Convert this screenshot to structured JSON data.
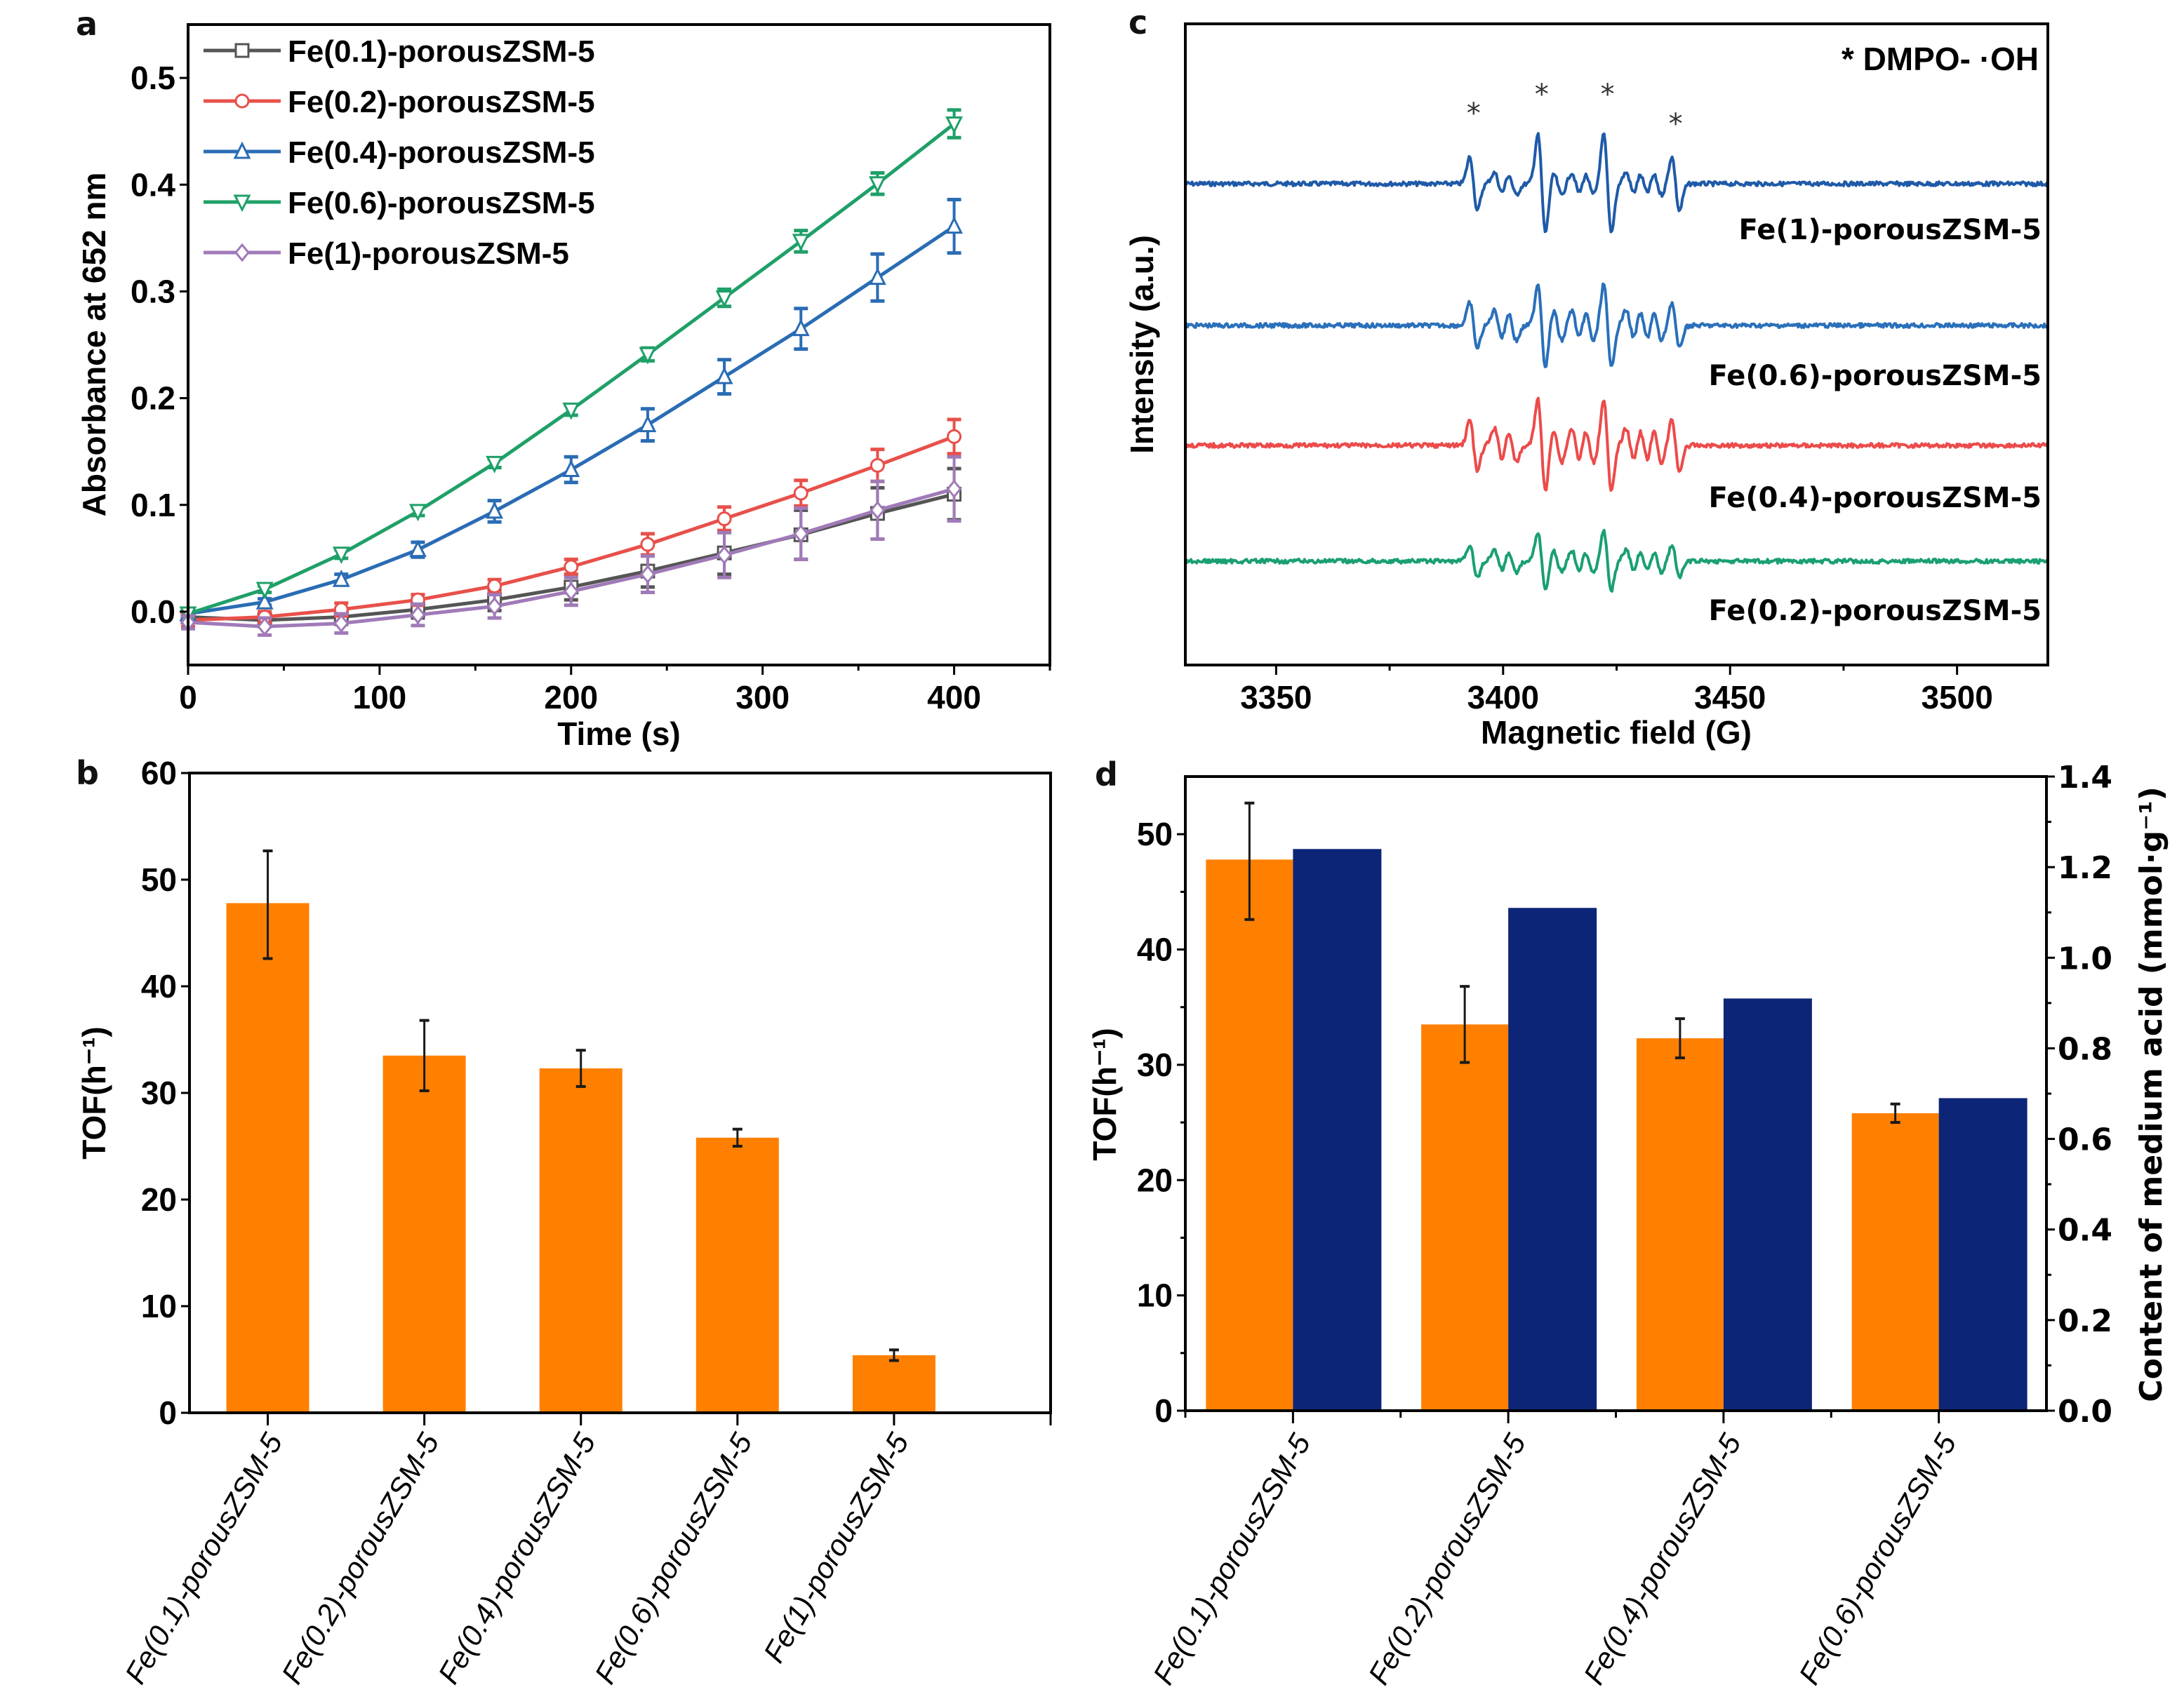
{
  "figure": {
    "panel_letters": [
      "a",
      "b",
      "c",
      "d"
    ]
  },
  "colors": {
    "fe01": "#555555",
    "fe02": "#e8504a",
    "fe04": "#2a6cb4",
    "fe06": "#1fa068",
    "fe1": "#a07ab8",
    "tof_bar": "#ff8000",
    "acid_bar": "#0c2577",
    "epr_fe1": "#1f5aa8",
    "epr_fe06": "#2a70ba",
    "epr_fe04": "#ec4b4b",
    "epr_fe02": "#1aa070"
  },
  "chart_data": [
    {
      "id": "a",
      "type": "line",
      "title": "",
      "xlabel": "Time (s)",
      "ylabel": "Absorbance at 652 nm",
      "xlim": [
        0,
        450
      ],
      "ylim": [
        -0.05,
        0.55
      ],
      "xticks": [
        0,
        100,
        200,
        300,
        400
      ],
      "xtick_labels": [
        "0",
        "100",
        "200",
        "300",
        "400"
      ],
      "yticks": [
        0.0,
        0.1,
        0.2,
        0.3,
        0.4,
        0.5
      ],
      "ytick_labels": [
        "0.0",
        "0.1",
        "0.2",
        "0.3",
        "0.4",
        "0.5"
      ],
      "grid": false,
      "legend_position": "top-left",
      "x": [
        0,
        40,
        80,
        120,
        160,
        200,
        240,
        280,
        320,
        360,
        400
      ],
      "series": [
        {
          "name": "Fe(0.1)-porousZSM-5",
          "color_key": "fe01",
          "marker": "square",
          "values": [
            -0.005,
            -0.008,
            -0.005,
            0.002,
            0.011,
            0.023,
            0.038,
            0.055,
            0.072,
            0.092,
            0.11
          ],
          "errors": [
            0.004,
            0.006,
            0.007,
            0.008,
            0.01,
            0.012,
            0.015,
            0.02,
            0.023,
            0.024,
            0.024
          ]
        },
        {
          "name": "Fe(0.2)-porousZSM-5",
          "color_key": "fe02",
          "marker": "circle",
          "values": [
            -0.008,
            -0.005,
            0.002,
            0.011,
            0.024,
            0.042,
            0.063,
            0.087,
            0.111,
            0.137,
            0.164
          ],
          "errors": [
            0.006,
            0.005,
            0.006,
            0.005,
            0.006,
            0.007,
            0.01,
            0.011,
            0.012,
            0.015,
            0.016
          ]
        },
        {
          "name": "Fe(0.4)-porousZSM-5",
          "color_key": "fe04",
          "marker": "triangle-up",
          "values": [
            -0.002,
            0.009,
            0.03,
            0.058,
            0.094,
            0.133,
            0.175,
            0.22,
            0.265,
            0.313,
            0.361
          ],
          "errors": [
            0.003,
            0.003,
            0.005,
            0.007,
            0.01,
            0.012,
            0.015,
            0.016,
            0.019,
            0.022,
            0.025
          ]
        },
        {
          "name": "Fe(0.6)-porousZSM-5",
          "color_key": "fe06",
          "marker": "triangle-down",
          "values": [
            -0.002,
            0.021,
            0.054,
            0.094,
            0.139,
            0.189,
            0.241,
            0.294,
            0.347,
            0.401,
            0.457
          ],
          "errors": [
            0.003,
            0.003,
            0.004,
            0.004,
            0.004,
            0.005,
            0.006,
            0.008,
            0.01,
            0.01,
            0.013
          ]
        },
        {
          "name": "Fe(1)-porousZSM-5",
          "color_key": "fe1",
          "marker": "diamond",
          "values": [
            -0.01,
            -0.014,
            -0.011,
            -0.003,
            0.005,
            0.019,
            0.035,
            0.053,
            0.073,
            0.095,
            0.115
          ],
          "errors": [
            0.006,
            0.008,
            0.009,
            0.01,
            0.011,
            0.013,
            0.017,
            0.021,
            0.024,
            0.027,
            0.03
          ]
        }
      ]
    },
    {
      "id": "b",
      "type": "bar",
      "title": "",
      "xlabel": "",
      "ylabel": "TOF(h⁻¹)",
      "ylim": [
        0,
        60
      ],
      "yticks": [
        0,
        10,
        20,
        30,
        40,
        50,
        60
      ],
      "ytick_labels": [
        "0",
        "10",
        "20",
        "30",
        "40",
        "50",
        "60"
      ],
      "grid": false,
      "categories": [
        "Fe(0.1)-porousZSM-5",
        "Fe(0.2)-porousZSM-5",
        "Fe(0.4)-porousZSM-5",
        "Fe(0.6)-porousZSM-5",
        "Fe(1)-porousZSM-5"
      ],
      "values": [
        47.8,
        33.5,
        32.3,
        25.8,
        5.4
      ],
      "error_low": [
        42.6,
        30.2,
        30.6,
        25.0,
        4.9
      ],
      "error_high": [
        52.7,
        36.8,
        34.0,
        26.6,
        5.9
      ],
      "color_key": "tof_bar"
    },
    {
      "id": "c",
      "type": "line",
      "title": "",
      "xlabel": "Magnetic field (G)",
      "ylabel": "Intensity (a.u.)",
      "xlim": [
        3330,
        3520
      ],
      "xticks": [
        3350,
        3400,
        3450,
        3500
      ],
      "xtick_labels": [
        "3350",
        "3400",
        "3450",
        "3500"
      ],
      "minor_xticks": [
        3375,
        3425,
        3475
      ],
      "yticks": [],
      "grid": false,
      "annotation": "* DMPO- ·OH",
      "peak_markers": {
        "symbol": "*",
        "x": [
          3393.5,
          3408.5,
          3423,
          3438
        ]
      },
      "hyperfine_quartet_G": [
        3393.5,
        3408.5,
        3423,
        3438
      ],
      "series": [
        {
          "name": "Fe(1)-porousZSM-5",
          "color_key": "epr_fe1",
          "offset": 3,
          "amplitude": 1.0
        },
        {
          "name": "Fe(0.6)-porousZSM-5",
          "color_key": "epr_fe06",
          "offset": 2,
          "amplitude": 0.85
        },
        {
          "name": "Fe(0.4)-porousZSM-5",
          "color_key": "epr_fe04",
          "offset": 1,
          "amplitude": 0.95
        },
        {
          "name": "Fe(0.2)-porousZSM-5",
          "color_key": "epr_fe02",
          "offset": 0,
          "amplitude": 0.6
        }
      ]
    },
    {
      "id": "d",
      "type": "bar",
      "title": "",
      "xlabel": "",
      "ylabel": "TOF(h⁻¹)",
      "ylabel_right": "Content of medium acid (mmol·g⁻¹)",
      "ylim": [
        0,
        55
      ],
      "ylim_right": [
        0,
        1.4
      ],
      "yticks": [
        0,
        10,
        20,
        30,
        40,
        50
      ],
      "ytick_labels": [
        "0",
        "10",
        "20",
        "30",
        "40",
        "50"
      ],
      "yticks_right": [
        0.0,
        0.2,
        0.4,
        0.6,
        0.8,
        1.0,
        1.2,
        1.4
      ],
      "ytick_labels_right": [
        "0.0",
        "0.2",
        "0.4",
        "0.6",
        "0.8",
        "1.0",
        "1.2",
        "1.4"
      ],
      "grid": false,
      "categories": [
        "Fe(0.1)-porousZSM-5",
        "Fe(0.2)-porousZSM-5",
        "Fe(0.4)-porousZSM-5",
        "Fe(0.6)-porousZSM-5"
      ],
      "series": [
        {
          "name": "TOF",
          "axis": "left",
          "color_key": "tof_bar",
          "values": [
            47.8,
            33.5,
            32.3,
            25.8
          ],
          "error_low": [
            42.6,
            30.2,
            30.6,
            25.0
          ],
          "error_high": [
            52.7,
            36.8,
            34.0,
            26.6
          ]
        },
        {
          "name": "Content of medium acid",
          "axis": "right",
          "color_key": "acid_bar",
          "values": [
            1.24,
            1.11,
            0.91,
            0.69
          ]
        }
      ]
    }
  ]
}
